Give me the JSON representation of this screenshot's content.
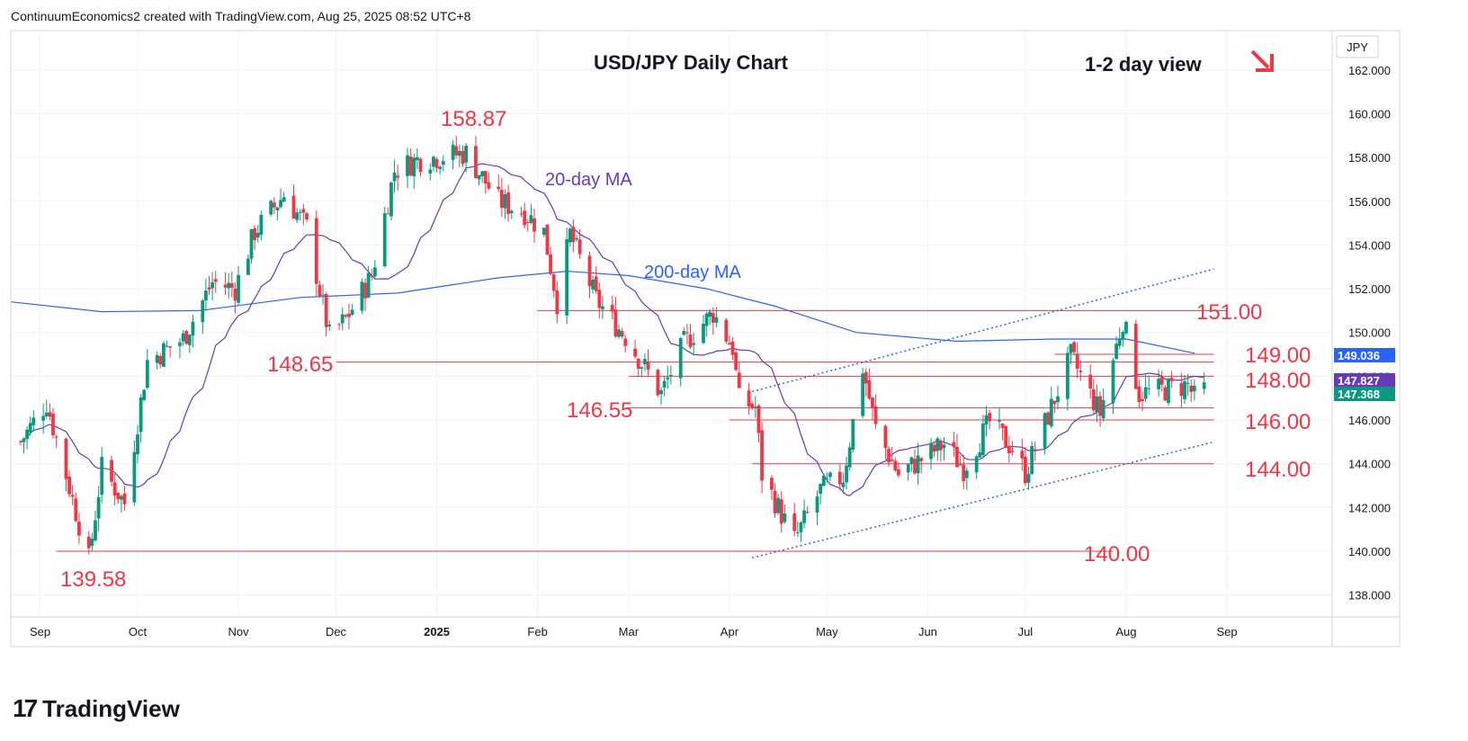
{
  "header": {
    "attribution": "ContinuumEconomics2 created with TradingView.com, Aug 25, 2025 08:52 UTC+8"
  },
  "footer": {
    "brand": "TradingView"
  },
  "chart_data": {
    "type": "candlestick",
    "title": "USD/JPY Daily Chart",
    "view_note": "1-2 day view",
    "bias_arrow": "down-right",
    "currency": "JPY",
    "y_ticks": [
      "162.000",
      "160.000",
      "158.000",
      "156.000",
      "154.000",
      "152.000",
      "150.000",
      "148.000",
      "146.000",
      "144.000",
      "142.000",
      "140.000",
      "138.000"
    ],
    "ylim": [
      137,
      163.8
    ],
    "x_ticks": [
      "Sep",
      "Oct",
      "Nov",
      "Dec",
      "2025",
      "Feb",
      "Mar",
      "Apr",
      "May",
      "Jun",
      "Jul",
      "Aug",
      "Sep"
    ],
    "price_badges": [
      {
        "label": "149.036",
        "value": 149.036,
        "color": "#2962ff"
      },
      {
        "label": "147.827",
        "value": 147.827,
        "color": "#673ab7"
      },
      {
        "label": "147.368",
        "value": 147.368,
        "color": "#089981"
      }
    ],
    "series": [
      {
        "name": "20-day MA",
        "color": "#673ab7"
      },
      {
        "name": "200-day MA",
        "color": "#2962ff"
      }
    ],
    "annotations": [
      {
        "text": "158.87",
        "value": 158.87
      },
      {
        "text": "148.65",
        "value": 148.65
      },
      {
        "text": "146.55",
        "value": 146.55
      },
      {
        "text": "139.58",
        "value": 139.58
      },
      {
        "text": "151.00",
        "value": 151.0
      },
      {
        "text": "149.00",
        "value": 149.0
      },
      {
        "text": "148.00",
        "value": 148.0
      },
      {
        "text": "146.00",
        "value": 146.0
      },
      {
        "text": "144.00",
        "value": 144.0
      },
      {
        "text": "140.00",
        "value": 140.0
      }
    ],
    "horizontal_levels": [
      151.0,
      149.0,
      148.65,
      148.0,
      146.55,
      146.0,
      144.0,
      140.0
    ],
    "trend_channel": {
      "lower": [
        {
          "date": "2025-04-08",
          "price": 139.7
        },
        {
          "date": "2025-08-28",
          "price": 145.0
        }
      ],
      "upper": [
        {
          "date": "2025-04-08",
          "price": 147.3
        },
        {
          "date": "2025-08-28",
          "price": 152.9
        }
      ]
    },
    "colors": {
      "up": "#089981",
      "down": "#f23645",
      "level": "#f23645",
      "channel": "#2962ff",
      "label": "#f23645"
    }
  }
}
